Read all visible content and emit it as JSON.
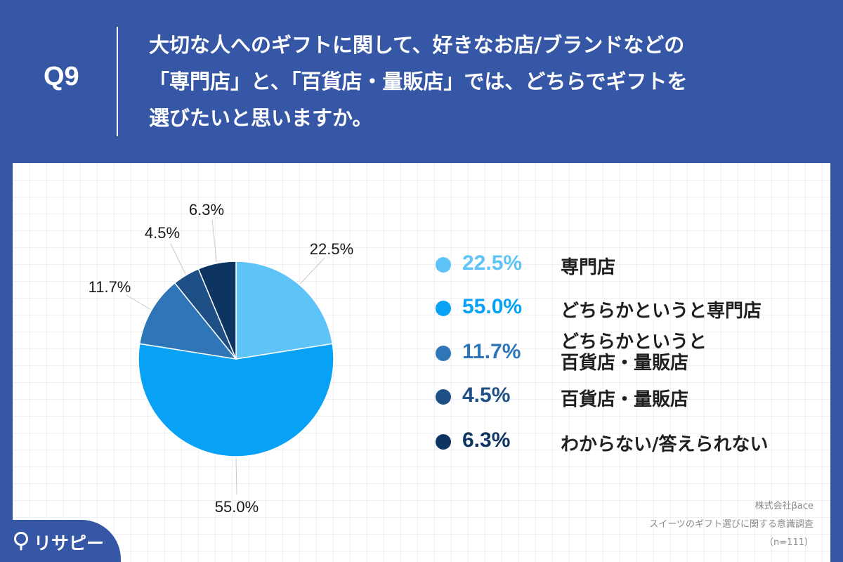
{
  "header": {
    "qnum": "Q9",
    "question_lines": [
      "大切な人へのギフトに関して、好きなお店/ブランドなどの",
      "「専門店」と、「百貨店・量販店」では、どちらでギフトを",
      "選びたいと思いますか。"
    ]
  },
  "colors": {
    "background": "#3656a6",
    "slices": [
      "#5ec3f6",
      "#07a1f5",
      "#2e76b8",
      "#1e4f85",
      "#0e3462"
    ]
  },
  "chart_data": {
    "type": "pie",
    "start": "12 o'clock, clockwise",
    "slices": [
      {
        "label": "専門店",
        "value": 22.5,
        "display": "22.5%"
      },
      {
        "label": "どちらかというと専門店",
        "value": 55.0,
        "display": "55.0%"
      },
      {
        "label": "どちらかというと 百貨店・量販店",
        "value": 11.7,
        "display": "11.7%"
      },
      {
        "label": "百貨店・量販店",
        "value": 4.5,
        "display": "4.5%"
      },
      {
        "label": "わからない/答えられない",
        "value": 6.3,
        "display": "6.3%"
      }
    ]
  },
  "legend": [
    {
      "pct": "22.5%",
      "lines": [
        "専門店"
      ]
    },
    {
      "pct": "55.0%",
      "lines": [
        "どちらかというと専門店"
      ]
    },
    {
      "pct": "11.7%",
      "lines": [
        "どちらかというと",
        "百貨店・量販店"
      ]
    },
    {
      "pct": "4.5%",
      "lines": [
        "百貨店・量販店"
      ]
    },
    {
      "pct": "6.3%",
      "lines": [
        "わからない/答えられない"
      ]
    }
  ],
  "source": {
    "company": "株式会社βace",
    "survey": "スイーツのギフト選びに関する意識調査",
    "n": "（n=111）"
  },
  "logo": {
    "text": "リサピー",
    "icon": "pin-icon"
  }
}
